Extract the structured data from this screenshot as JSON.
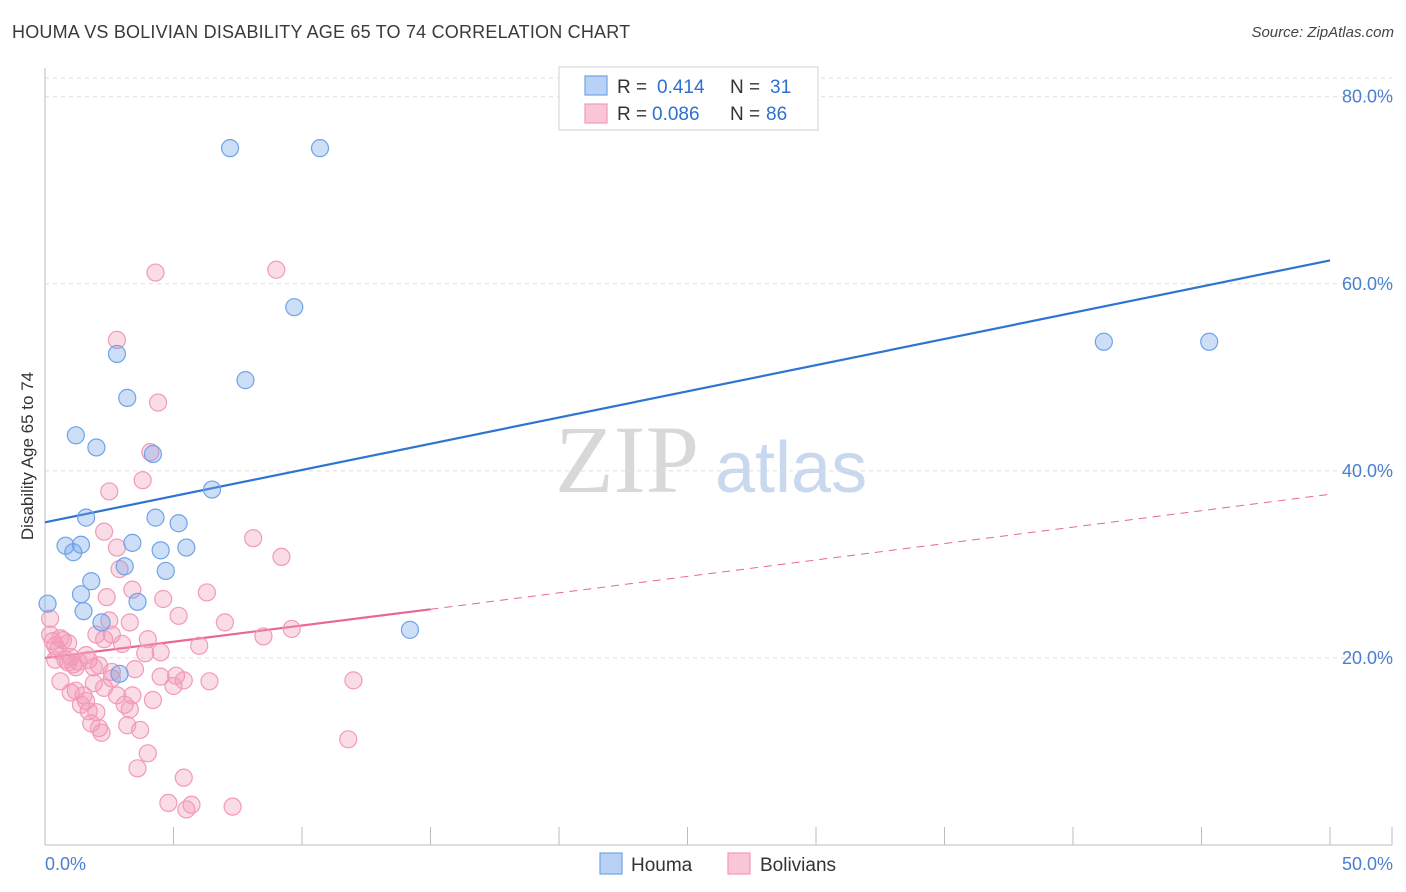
{
  "header": {
    "title": "HOUMA VS BOLIVIAN DISABILITY AGE 65 TO 74 CORRELATION CHART",
    "source": "Source: ZipAtlas.com"
  },
  "watermark": {
    "zip": "ZIP",
    "atlas": "atlas"
  },
  "colors": {
    "houma": "#6fa3e8",
    "houma_line": "#2f74d0",
    "bolivians": "#f29ab8",
    "bolivians_line": "#e8669a",
    "grid": "#dddddd",
    "tick_text": "#4a7fd0"
  },
  "legend": {
    "rows": [
      {
        "r_label": "R = ",
        "r_value": "0.414",
        "n_label": "N = ",
        "n_value": "31"
      },
      {
        "r_label": "R = ",
        "r_value": "0.086",
        "n_label": "N = ",
        "n_value": "86"
      }
    ]
  },
  "chart_data": {
    "type": "scatter",
    "title": "HOUMA VS BOLIVIAN DISABILITY AGE 65 TO 74 CORRELATION CHART",
    "xlabel": "",
    "ylabel": "Disability Age 65 to 74",
    "xlim": [
      0,
      50
    ],
    "ylim": [
      0,
      82
    ],
    "x_tick_labels": [
      "0.0%",
      "50.0%"
    ],
    "y_ticks": [
      20,
      40,
      60,
      80
    ],
    "y_tick_labels": [
      "20.0%",
      "40.0%",
      "60.0%",
      "80.0%"
    ],
    "series": [
      {
        "name": "Houma",
        "r": 0.414,
        "n": 31,
        "trend": {
          "x": [
            0,
            50
          ],
          "y": [
            34.5,
            62.5
          ],
          "style": "solid"
        },
        "points": [
          [
            0.1,
            25.8
          ],
          [
            0.8,
            32.0
          ],
          [
            1.1,
            31.3
          ],
          [
            1.4,
            32.1
          ],
          [
            1.6,
            35.0
          ],
          [
            1.2,
            43.8
          ],
          [
            2.0,
            42.5
          ],
          [
            1.4,
            26.8
          ],
          [
            1.8,
            28.2
          ],
          [
            1.5,
            25.0
          ],
          [
            2.2,
            23.8
          ],
          [
            2.8,
            52.5
          ],
          [
            3.2,
            47.8
          ],
          [
            3.4,
            32.3
          ],
          [
            3.1,
            29.8
          ],
          [
            3.6,
            26.0
          ],
          [
            4.2,
            41.8
          ],
          [
            4.3,
            35.0
          ],
          [
            4.5,
            31.5
          ],
          [
            4.7,
            29.3
          ],
          [
            5.2,
            34.4
          ],
          [
            5.5,
            31.8
          ],
          [
            6.5,
            38.0
          ],
          [
            7.2,
            74.5
          ],
          [
            7.8,
            49.7
          ],
          [
            9.7,
            57.5
          ],
          [
            10.7,
            74.5
          ],
          [
            14.2,
            23.0
          ],
          [
            41.2,
            53.8
          ],
          [
            45.3,
            53.8
          ],
          [
            2.9,
            18.3
          ]
        ]
      },
      {
        "name": "Bolivians",
        "r": 0.086,
        "n": 86,
        "trend": {
          "x": [
            0,
            15
          ],
          "y": [
            20.0,
            25.2
          ],
          "style": "solid",
          "extended_x": [
            15,
            50
          ],
          "extended_y": [
            25.2,
            37.5
          ],
          "extended_style": "dashed"
        },
        "points": [
          [
            0.2,
            24.2
          ],
          [
            0.2,
            22.5
          ],
          [
            0.3,
            21.8
          ],
          [
            0.4,
            21.3
          ],
          [
            0.5,
            20.8
          ],
          [
            0.6,
            22.1
          ],
          [
            0.7,
            21.9
          ],
          [
            0.8,
            19.8
          ],
          [
            0.9,
            19.5
          ],
          [
            1.0,
            20.1
          ],
          [
            0.6,
            17.5
          ],
          [
            1.1,
            19.3
          ],
          [
            1.3,
            19.6
          ],
          [
            1.2,
            16.5
          ],
          [
            1.0,
            16.3
          ],
          [
            1.4,
            15.0
          ],
          [
            1.5,
            16.0
          ],
          [
            1.6,
            15.4
          ],
          [
            1.7,
            14.3
          ],
          [
            1.8,
            13.0
          ],
          [
            2.0,
            14.2
          ],
          [
            2.1,
            12.5
          ],
          [
            2.2,
            12.0
          ],
          [
            2.3,
            16.8
          ],
          [
            1.7,
            19.8
          ],
          [
            1.6,
            20.3
          ],
          [
            1.9,
            19.0
          ],
          [
            2.1,
            19.2
          ],
          [
            2.0,
            22.5
          ],
          [
            2.3,
            22.0
          ],
          [
            2.6,
            22.5
          ],
          [
            2.4,
            26.5
          ],
          [
            2.5,
            24.0
          ],
          [
            2.3,
            33.5
          ],
          [
            2.5,
            37.8
          ],
          [
            2.8,
            54.0
          ],
          [
            2.8,
            31.8
          ],
          [
            2.9,
            29.5
          ],
          [
            2.6,
            18.5
          ],
          [
            2.8,
            16.0
          ],
          [
            3.1,
            15.0
          ],
          [
            3.3,
            14.5
          ],
          [
            3.2,
            12.8
          ],
          [
            3.0,
            21.5
          ],
          [
            3.3,
            23.8
          ],
          [
            3.4,
            16.0
          ],
          [
            3.5,
            18.8
          ],
          [
            3.4,
            27.3
          ],
          [
            3.7,
            12.3
          ],
          [
            3.6,
            8.2
          ],
          [
            3.8,
            39.0
          ],
          [
            4.0,
            9.8
          ],
          [
            4.1,
            42.0
          ],
          [
            4.0,
            22.0
          ],
          [
            4.2,
            15.5
          ],
          [
            4.3,
            61.2
          ],
          [
            4.4,
            47.3
          ],
          [
            4.5,
            18.0
          ],
          [
            4.6,
            26.3
          ],
          [
            4.5,
            20.6
          ],
          [
            4.8,
            4.5
          ],
          [
            5.0,
            17.0
          ],
          [
            5.1,
            18.1
          ],
          [
            5.2,
            24.5
          ],
          [
            5.4,
            17.6
          ],
          [
            5.4,
            7.2
          ],
          [
            5.5,
            3.8
          ],
          [
            5.7,
            4.3
          ],
          [
            6.0,
            21.3
          ],
          [
            6.3,
            27.0
          ],
          [
            6.4,
            17.5
          ],
          [
            7.0,
            23.8
          ],
          [
            7.3,
            4.1
          ],
          [
            8.1,
            32.8
          ],
          [
            8.5,
            22.3
          ],
          [
            9.0,
            61.5
          ],
          [
            9.2,
            30.8
          ],
          [
            9.6,
            23.1
          ],
          [
            11.8,
            11.3
          ],
          [
            12.0,
            17.6
          ],
          [
            0.4,
            19.8
          ],
          [
            1.2,
            19.0
          ],
          [
            1.9,
            17.3
          ],
          [
            2.6,
            17.8
          ],
          [
            3.9,
            20.5
          ],
          [
            0.9,
            21.6
          ]
        ]
      }
    ],
    "legend_entries": [
      "Houma",
      "Bolivians"
    ],
    "grid": true
  }
}
